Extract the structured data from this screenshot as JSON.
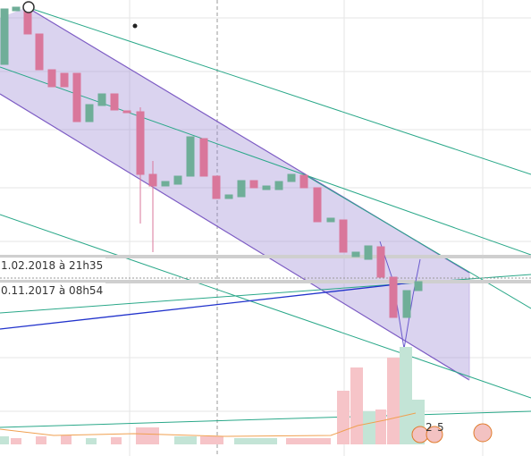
{
  "labels": {
    "upper": "1.02.2018 à 21h35",
    "lower": "0.11.2017 à 08h54"
  },
  "events": {
    "first": "2",
    "second": "5"
  }
}
